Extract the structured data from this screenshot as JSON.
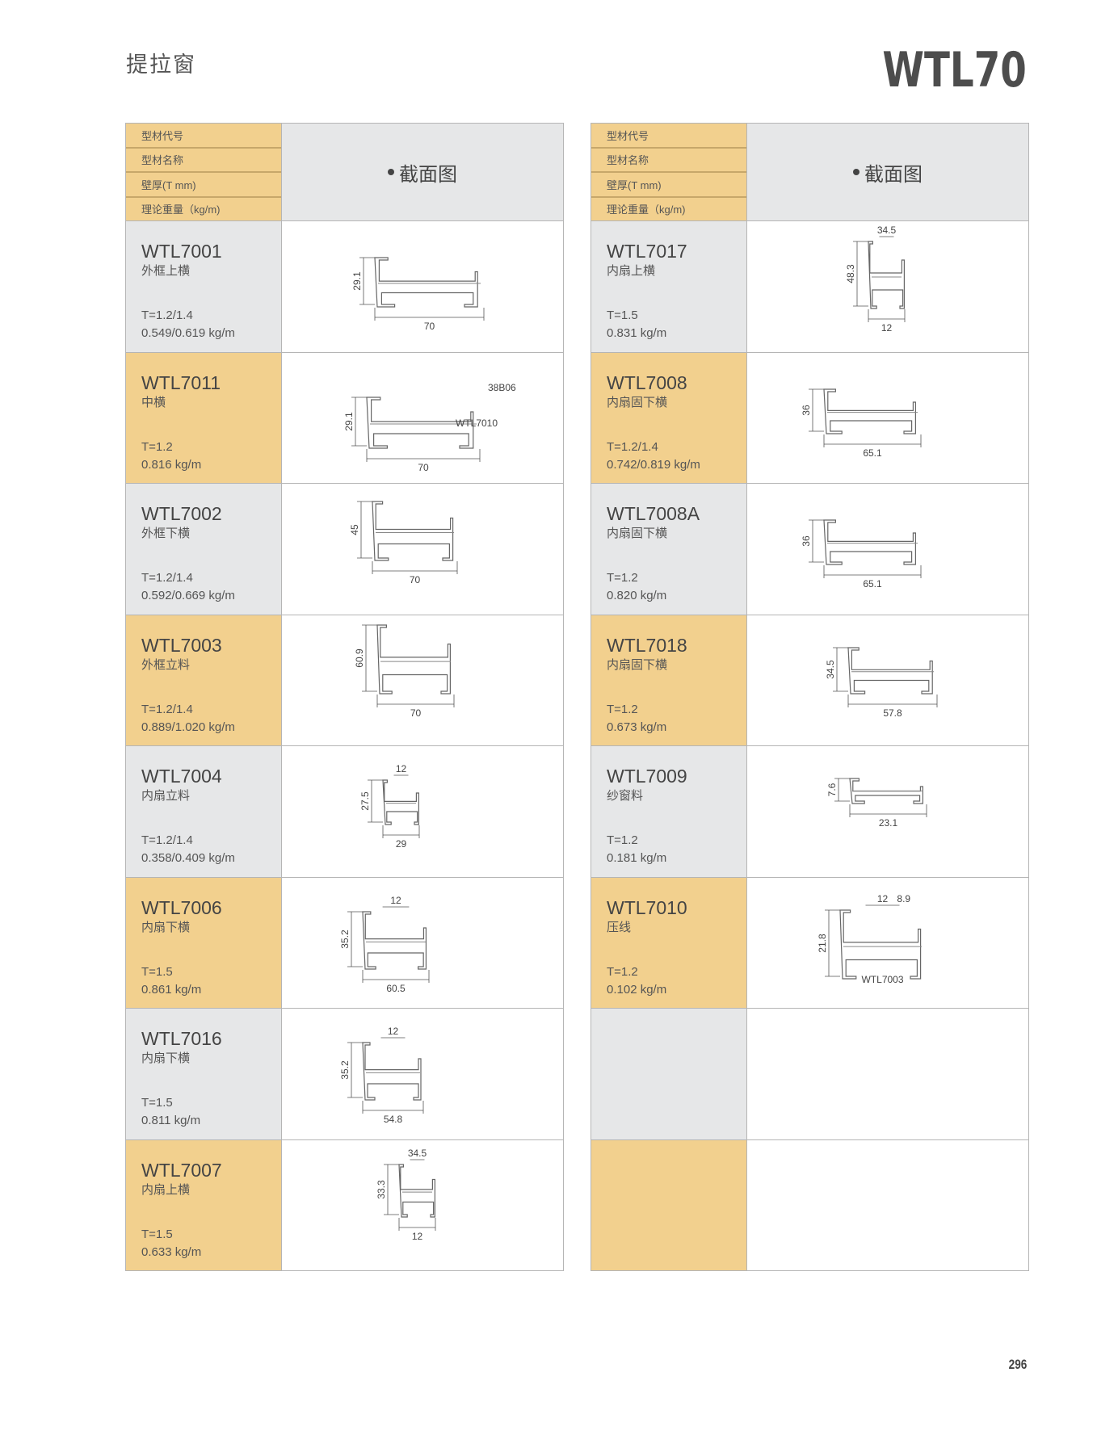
{
  "page": {
    "title": "提拉窗",
    "series": "WTL70",
    "page_number": "296"
  },
  "header": {
    "labels": [
      "型材代号",
      "型材名称",
      "壁厚(T mm)",
      "理论重量（kg/m)"
    ],
    "drawing_label": "截面图"
  },
  "colors": {
    "tan": "#f2d08e",
    "gray": "#e6e7e8",
    "border": "#b5b5b5"
  },
  "left": [
    {
      "code": "WTL7001",
      "name": "外框上横",
      "thickness": "T=1.2/1.4",
      "weight": "0.549/0.619  kg/m",
      "dims": [
        "70",
        "29.1"
      ]
    },
    {
      "code": "WTL7011",
      "name": "中横",
      "thickness": "T=1.2",
      "weight": "0.816 kg/m",
      "dims": [
        "70",
        "29.1"
      ],
      "callouts": [
        "38B06",
        "WTL7010"
      ]
    },
    {
      "code": "WTL7002",
      "name": "外框下横",
      "thickness": "T=1.2/1.4",
      "weight": "0.592/0.669  kg/m",
      "dims": [
        "70",
        "45"
      ]
    },
    {
      "code": "WTL7003",
      "name": "外框立料",
      "thickness": "T=1.2/1.4",
      "weight": "0.889/1.020  kg/m",
      "dims": [
        "70",
        "60.9"
      ]
    },
    {
      "code": "WTL7004",
      "name": "内扇立料",
      "thickness": "T=1.2/1.4",
      "weight": "0.358/0.409  kg/m",
      "dims": [
        "29",
        "27.5",
        "12"
      ]
    },
    {
      "code": "WTL7006",
      "name": "内扇下横",
      "thickness": " T=1.5",
      "weight": "0.861 kg/m",
      "dims": [
        "60.5",
        "35.2",
        "12"
      ]
    },
    {
      "code": "WTL7016",
      "name": "内扇下横",
      "thickness": "T=1.5",
      "weight": "0.811 kg/m",
      "dims": [
        "54.8",
        "35.2",
        "12"
      ]
    },
    {
      "code": "WTL7007",
      "name": "内扇上横",
      "thickness": "T=1.5",
      "weight": "0.633 kg/m",
      "dims": [
        "12",
        "33.3",
        "34.5"
      ]
    }
  ],
  "right": [
    {
      "code": "WTL7017",
      "name": "内扇上横",
      "thickness": "T=1.5",
      "weight": "0.831 kg/m",
      "dims": [
        "12",
        "48.3",
        "34.5"
      ]
    },
    {
      "code": "WTL7008",
      "name": "内扇固下横",
      "thickness": "T=1.2/1.4",
      "weight": "0.742/0.819  kg/m",
      "dims": [
        "65.1",
        "36"
      ]
    },
    {
      "code": "WTL7008A",
      "name": "内扇固下横",
      "thickness": "T=1.2",
      "weight": "0.820 kg/m",
      "dims": [
        "65.1",
        "36"
      ]
    },
    {
      "code": "WTL7018",
      "name": "内扇固下横",
      "thickness": "T=1.2",
      "weight": "0.673 kg/m",
      "dims": [
        "57.8",
        "34.5"
      ]
    },
    {
      "code": "WTL7009",
      "name": "纱窗料",
      "thickness": "T=1.2",
      "weight": "0.181 kg/m",
      "dims": [
        "23.1",
        "7.6"
      ]
    },
    {
      "code": "WTL7010",
      "name": "压线",
      "thickness": "T=1.2",
      "weight": "0.102 kg/m",
      "dims": [
        "",
        "21.8",
        "12",
        "8.9"
      ],
      "callouts": [
        "WTL7003"
      ]
    },
    {
      "code": "",
      "name": "",
      "thickness": "",
      "weight": "",
      "dims": []
    },
    {
      "code": "",
      "name": "",
      "thickness": "",
      "weight": "",
      "dims": []
    }
  ]
}
